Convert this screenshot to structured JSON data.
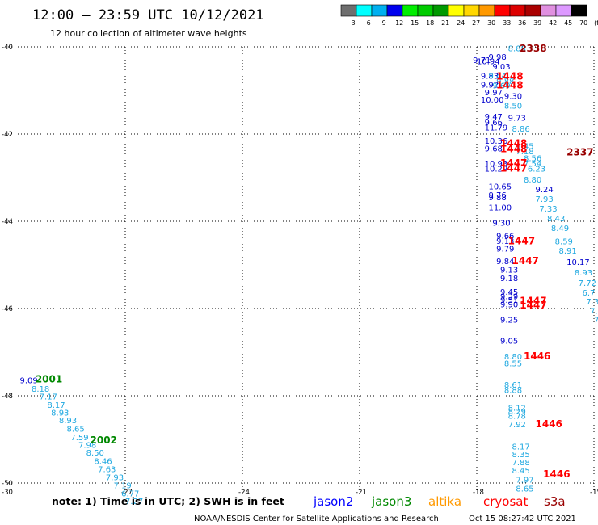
{
  "header": {
    "title": "12:00 – 23:59 UTC 10/12/2021",
    "subtitle": "12 hour collection of altimeter wave heights"
  },
  "colorbar": {
    "labels": [
      "3",
      "6",
      "9",
      "12",
      "15",
      "18",
      "21",
      "24",
      "27",
      "30",
      "33",
      "36",
      "39",
      "42",
      "45",
      "70",
      "(ft)"
    ],
    "colors": [
      "#6e6e6e",
      "#00ffff",
      "#00b0f0",
      "#0000ee",
      "#00ee00",
      "#00cc00",
      "#009900",
      "#ffff00",
      "#ffd700",
      "#ff9900",
      "#ff0000",
      "#dd0000",
      "#aa0000",
      "#e090e0",
      "#dd99ff",
      "#000000"
    ]
  },
  "note": "note:  1) Time is in UTC;  2) SWH is in feet",
  "satellites": [
    {
      "name": "jason2",
      "color": "#0000ff"
    },
    {
      "name": "jason3",
      "color": "#008800"
    },
    {
      "name": "altika",
      "color": "#ff9900"
    },
    {
      "name": "cryosat",
      "color": "#ff0000"
    },
    {
      "name": "s3a",
      "color": "#990000"
    }
  ],
  "footer": {
    "credit": "NOAA/NESDIS Center for Satellite Applications and Research",
    "timestamp": "Oct 15 08:27:42 UTC 2021"
  },
  "chart_data": {
    "type": "scatter",
    "xlim": [
      -30,
      -15
    ],
    "ylim": [
      -50,
      -40
    ],
    "x_ticks": [
      -30,
      -27,
      -24,
      -21,
      -18,
      -15
    ],
    "x_tick_labels": [
      "-30",
      "-27",
      "-24",
      "-21",
      "-18",
      "-15"
    ],
    "y_ticks": [
      -40,
      -42,
      -44,
      -46,
      -48,
      -50
    ],
    "y_tick_labels": [
      "-40",
      "-42",
      "-44",
      "-46",
      "-48",
      "-50"
    ],
    "grid": true,
    "swh_points": [
      {
        "x": -29.7,
        "y": -47.64,
        "text": "9.09",
        "color": "#0000cc"
      },
      {
        "x": -29.4,
        "y": -47.83,
        "text": "8.18",
        "color": "#1fa8e0"
      },
      {
        "x": -29.2,
        "y": -48.01,
        "text": "7.17",
        "color": "#1fa8e0"
      },
      {
        "x": -29.0,
        "y": -48.2,
        "text": "8.17",
        "color": "#1fa8e0"
      },
      {
        "x": -28.9,
        "y": -48.38,
        "text": "8.93",
        "color": "#1fa8e0"
      },
      {
        "x": -28.7,
        "y": -48.56,
        "text": "8.93",
        "color": "#1fa8e0"
      },
      {
        "x": -28.5,
        "y": -48.75,
        "text": "8.65",
        "color": "#1fa8e0"
      },
      {
        "x": -28.4,
        "y": -48.94,
        "text": "7.59",
        "color": "#1fa8e0"
      },
      {
        "x": -28.2,
        "y": -49.12,
        "text": "7.98",
        "color": "#1fa8e0"
      },
      {
        "x": -28.0,
        "y": -49.3,
        "text": "8.50",
        "color": "#1fa8e0"
      },
      {
        "x": -27.8,
        "y": -49.49,
        "text": "8.46",
        "color": "#1fa8e0"
      },
      {
        "x": -27.7,
        "y": -49.68,
        "text": "7.63",
        "color": "#1fa8e0"
      },
      {
        "x": -27.5,
        "y": -49.86,
        "text": "7.93",
        "color": "#1fa8e0"
      },
      {
        "x": -27.3,
        "y": -50.05,
        "text": "7.19",
        "color": "#1fa8e0"
      },
      {
        "x": -27.1,
        "y": -50.23,
        "text": "6.77",
        "color": "#1fa8e0"
      },
      {
        "x": -27.0,
        "y": -50.41,
        "text": "7.27",
        "color": "#1fa8e0"
      },
      {
        "x": -17.2,
        "y": -40.03,
        "text": "8.88",
        "color": "#1fa8e0"
      },
      {
        "x": -17.7,
        "y": -40.22,
        "text": "9.98",
        "color": "#0000cc"
      },
      {
        "x": -18.0,
        "y": -40.32,
        "text": "10.94",
        "color": "#0000cc"
      },
      {
        "x": -18.1,
        "y": -40.3,
        "text": "9.71",
        "color": "#0000cc"
      },
      {
        "x": -17.6,
        "y": -40.44,
        "text": "9.03",
        "color": "#0000cc"
      },
      {
        "x": -17.9,
        "y": -40.66,
        "text": "9.83",
        "color": "#0000cc"
      },
      {
        "x": -17.7,
        "y": -40.66,
        "text": "9.44",
        "color": "#1fa8e0"
      },
      {
        "x": -17.5,
        "y": -40.78,
        "text": "9.88",
        "color": "#1fa8e0"
      },
      {
        "x": -17.9,
        "y": -40.86,
        "text": "9.92",
        "color": "#0000cc"
      },
      {
        "x": -17.6,
        "y": -40.88,
        "text": "9.69",
        "color": "#1fa8e0"
      },
      {
        "x": -17.8,
        "y": -41.04,
        "text": "9.97",
        "color": "#0000cc"
      },
      {
        "x": -17.9,
        "y": -41.2,
        "text": "10.00",
        "color": "#0000cc"
      },
      {
        "x": -17.3,
        "y": -41.12,
        "text": "9.30",
        "color": "#0000cc"
      },
      {
        "x": -17.3,
        "y": -41.34,
        "text": "8.50",
        "color": "#1fa8e0"
      },
      {
        "x": -17.8,
        "y": -41.59,
        "text": "9.47",
        "color": "#0000cc"
      },
      {
        "x": -17.2,
        "y": -41.62,
        "text": "9.73",
        "color": "#0000cc"
      },
      {
        "x": -17.8,
        "y": -41.72,
        "text": "9.66",
        "color": "#0000cc"
      },
      {
        "x": -17.8,
        "y": -41.84,
        "text": "11.79",
        "color": "#0000cc"
      },
      {
        "x": -17.1,
        "y": -41.87,
        "text": "8.86",
        "color": "#1fa8e0"
      },
      {
        "x": -17.8,
        "y": -42.15,
        "text": "10.36",
        "color": "#0000cc"
      },
      {
        "x": -17.8,
        "y": -42.32,
        "text": "9.68",
        "color": "#0000cc"
      },
      {
        "x": -17.0,
        "y": -42.27,
        "text": "9.45",
        "color": "#1fa8e0"
      },
      {
        "x": -17.0,
        "y": -42.39,
        "text": "7.18",
        "color": "#1fa8e0"
      },
      {
        "x": -16.8,
        "y": -42.55,
        "text": "8.56",
        "color": "#1fa8e0"
      },
      {
        "x": -16.8,
        "y": -42.67,
        "text": "7.54",
        "color": "#1fa8e0"
      },
      {
        "x": -17.8,
        "y": -42.67,
        "text": "10.93",
        "color": "#0000cc"
      },
      {
        "x": -17.8,
        "y": -42.79,
        "text": "10.29",
        "color": "#0000cc"
      },
      {
        "x": -16.7,
        "y": -42.79,
        "text": "6.23",
        "color": "#1fa8e0"
      },
      {
        "x": -16.8,
        "y": -43.04,
        "text": "8.80",
        "color": "#1fa8e0"
      },
      {
        "x": -17.7,
        "y": -43.19,
        "text": "10.65",
        "color": "#0000cc"
      },
      {
        "x": -16.5,
        "y": -43.26,
        "text": "9.24",
        "color": "#0000cc"
      },
      {
        "x": -17.7,
        "y": -43.39,
        "text": "9.76",
        "color": "#0000cc"
      },
      {
        "x": -17.7,
        "y": -43.44,
        "text": "9.88",
        "color": "#0000cc"
      },
      {
        "x": -16.5,
        "y": -43.48,
        "text": "7.93",
        "color": "#1fa8e0"
      },
      {
        "x": -17.7,
        "y": -43.68,
        "text": "11.00",
        "color": "#0000cc"
      },
      {
        "x": -16.4,
        "y": -43.7,
        "text": "7.33",
        "color": "#1fa8e0"
      },
      {
        "x": -16.2,
        "y": -43.93,
        "text": "8.43",
        "color": "#1fa8e0"
      },
      {
        "x": -17.6,
        "y": -44.03,
        "text": "9.30",
        "color": "#0000cc"
      },
      {
        "x": -16.1,
        "y": -44.15,
        "text": "8.49",
        "color": "#1fa8e0"
      },
      {
        "x": -17.5,
        "y": -44.32,
        "text": "9.66",
        "color": "#0000cc"
      },
      {
        "x": -17.5,
        "y": -44.44,
        "text": "9.13",
        "color": "#0000cc"
      },
      {
        "x": -16.0,
        "y": -44.45,
        "text": "8.59",
        "color": "#1fa8e0"
      },
      {
        "x": -17.5,
        "y": -44.62,
        "text": "9.79",
        "color": "#0000cc"
      },
      {
        "x": -15.9,
        "y": -44.67,
        "text": "8.91",
        "color": "#1fa8e0"
      },
      {
        "x": -17.5,
        "y": -44.91,
        "text": "9.84",
        "color": "#0000cc"
      },
      {
        "x": -15.7,
        "y": -44.93,
        "text": "10.17",
        "color": "#0000cc"
      },
      {
        "x": -17.4,
        "y": -45.1,
        "text": "9.13",
        "color": "#0000cc"
      },
      {
        "x": -15.5,
        "y": -45.17,
        "text": "8.93",
        "color": "#1fa8e0"
      },
      {
        "x": -17.4,
        "y": -45.3,
        "text": "9.18",
        "color": "#0000cc"
      },
      {
        "x": -15.4,
        "y": -45.41,
        "text": "7.72",
        "color": "#1fa8e0"
      },
      {
        "x": -17.4,
        "y": -45.61,
        "text": "9.45",
        "color": "#0000cc"
      },
      {
        "x": -15.3,
        "y": -45.63,
        "text": "6.7",
        "color": "#1fa8e0"
      },
      {
        "x": -17.4,
        "y": -45.71,
        "text": "9.39",
        "color": "#0000cc"
      },
      {
        "x": -17.4,
        "y": -45.8,
        "text": "9.51",
        "color": "#0000cc"
      },
      {
        "x": -15.2,
        "y": -45.83,
        "text": "7.3",
        "color": "#1fa8e0"
      },
      {
        "x": -17.4,
        "y": -45.9,
        "text": "9.90",
        "color": "#0000cc"
      },
      {
        "x": -15.1,
        "y": -46.05,
        "text": "7.",
        "color": "#1fa8e0"
      },
      {
        "x": -17.4,
        "y": -46.25,
        "text": "9.25",
        "color": "#0000cc"
      },
      {
        "x": -15.0,
        "y": -46.25,
        "text": "7",
        "color": "#1fa8e0"
      },
      {
        "x": -17.4,
        "y": -46.73,
        "text": "9.05",
        "color": "#0000cc"
      },
      {
        "x": -17.3,
        "y": -47.09,
        "text": "8.80",
        "color": "#1fa8e0"
      },
      {
        "x": -17.3,
        "y": -47.25,
        "text": "8.55",
        "color": "#1fa8e0"
      },
      {
        "x": -17.3,
        "y": -47.74,
        "text": "8.61",
        "color": "#1fa8e0"
      },
      {
        "x": -17.3,
        "y": -47.86,
        "text": "8.88",
        "color": "#1fa8e0"
      },
      {
        "x": -17.2,
        "y": -48.27,
        "text": "8.12",
        "color": "#1fa8e0"
      },
      {
        "x": -17.2,
        "y": -48.35,
        "text": "8.29",
        "color": "#1fa8e0"
      },
      {
        "x": -17.2,
        "y": -48.45,
        "text": "8.78",
        "color": "#1fa8e0"
      },
      {
        "x": -17.2,
        "y": -48.65,
        "text": "7.92",
        "color": "#1fa8e0"
      },
      {
        "x": -17.1,
        "y": -49.16,
        "text": "8.17",
        "color": "#1fa8e0"
      },
      {
        "x": -17.1,
        "y": -49.33,
        "text": "8.35",
        "color": "#1fa8e0"
      },
      {
        "x": -17.1,
        "y": -49.52,
        "text": "7.88",
        "color": "#1fa8e0"
      },
      {
        "x": -17.1,
        "y": -49.7,
        "text": "8.45",
        "color": "#1fa8e0"
      },
      {
        "x": -17.0,
        "y": -49.92,
        "text": "7.97",
        "color": "#1fa8e0"
      },
      {
        "x": -17.0,
        "y": -50.12,
        "text": "8.65",
        "color": "#1fa8e0"
      }
    ],
    "time_labels": [
      {
        "x": -29.3,
        "y": -47.62,
        "text": "2001",
        "color": "#008800"
      },
      {
        "x": -27.9,
        "y": -49.02,
        "text": "2002",
        "color": "#008800"
      },
      {
        "x": -16.9,
        "y": -40.04,
        "text": "2338",
        "color": "#990000"
      },
      {
        "x": -15.7,
        "y": -42.42,
        "text": "2337",
        "color": "#990000"
      },
      {
        "x": -17.5,
        "y": -40.68,
        "text": "1448",
        "color": "#ff0000"
      },
      {
        "x": -17.5,
        "y": -40.88,
        "text": "1448",
        "color": "#ff0000"
      },
      {
        "x": -17.4,
        "y": -42.21,
        "text": "1448",
        "color": "#ff0000"
      },
      {
        "x": -17.4,
        "y": -42.34,
        "text": "1448",
        "color": "#ff0000"
      },
      {
        "x": -17.4,
        "y": -42.67,
        "text": "1447",
        "color": "#ff0000"
      },
      {
        "x": -17.4,
        "y": -42.79,
        "text": "1447",
        "color": "#ff0000"
      },
      {
        "x": -17.2,
        "y": -44.45,
        "text": "1447",
        "color": "#ff0000"
      },
      {
        "x": -17.1,
        "y": -44.91,
        "text": "1447",
        "color": "#ff0000"
      },
      {
        "x": -16.9,
        "y": -45.82,
        "text": "1447",
        "color": "#ff0000"
      },
      {
        "x": -16.9,
        "y": -45.93,
        "text": "1447",
        "color": "#ff0000"
      },
      {
        "x": -16.8,
        "y": -47.09,
        "text": "1446",
        "color": "#ff0000"
      },
      {
        "x": -16.5,
        "y": -48.65,
        "text": "1446",
        "color": "#ff0000"
      },
      {
        "x": -16.3,
        "y": -49.8,
        "text": "1446",
        "color": "#ff0000"
      }
    ]
  }
}
